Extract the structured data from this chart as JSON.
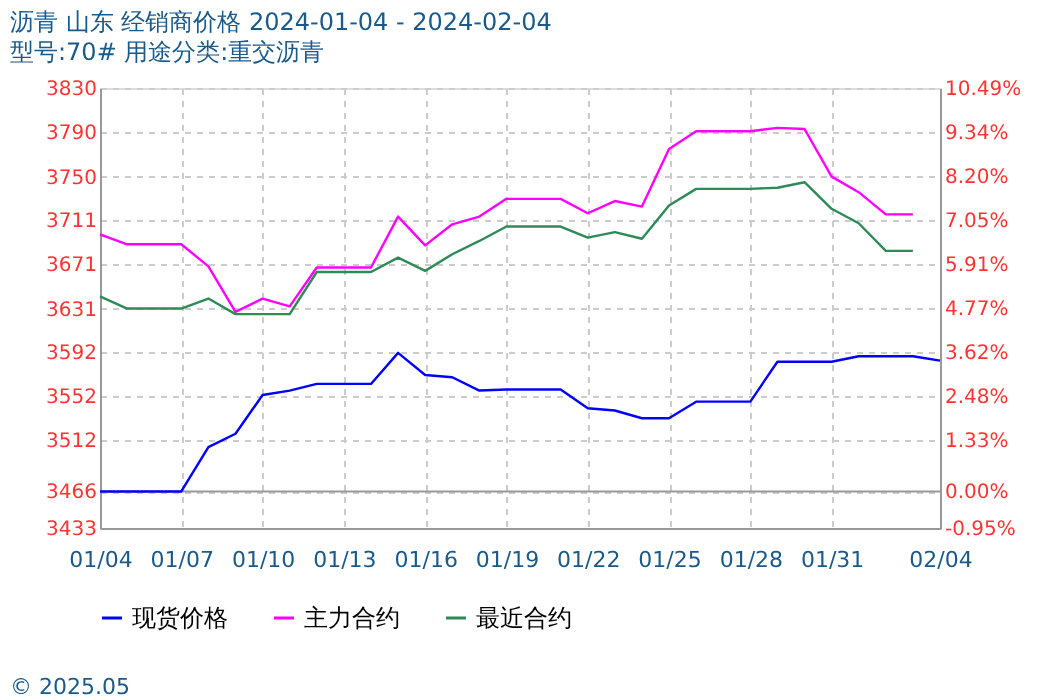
{
  "chart_data": {
    "type": "line",
    "title": "沥青 山东 经销商价格 2024-01-04 - 2024-02-04",
    "subtitle": "型号:70# 用途分类:重交沥青",
    "x": [
      "2024-01-04",
      "2024-01-05",
      "2024-01-06",
      "2024-01-07",
      "2024-01-08",
      "2024-01-09",
      "2024-01-10",
      "2024-01-11",
      "2024-01-12",
      "2024-01-13",
      "2024-01-14",
      "2024-01-15",
      "2024-01-16",
      "2024-01-17",
      "2024-01-18",
      "2024-01-19",
      "2024-01-20",
      "2024-01-21",
      "2024-01-22",
      "2024-01-23",
      "2024-01-24",
      "2024-01-25",
      "2024-01-26",
      "2024-01-27",
      "2024-01-28",
      "2024-01-29",
      "2024-01-30",
      "2024-01-31",
      "2024-02-01",
      "2024-02-02",
      "2024-02-03",
      "2024-02-04"
    ],
    "series": [
      {
        "name": "现货价格",
        "color": "#0000ff",
        "values": [
          3466,
          3466,
          3466,
          3466,
          3506,
          3518,
          3553,
          3557,
          3563,
          3563,
          3563,
          3591,
          3571,
          3569,
          3557,
          3558,
          3558,
          3558,
          3541,
          3539,
          3532,
          3532,
          3547,
          3547,
          3547,
          3583,
          3583,
          3583,
          3588,
          3588,
          3588,
          3584
        ]
      },
      {
        "name": "主力合约",
        "color": "#ff00ff",
        "values": [
          3698,
          3689,
          3689,
          3689,
          3669,
          3628,
          3640,
          3633,
          3668,
          3668,
          3668,
          3714,
          3688,
          3707,
          3714,
          3730,
          3730,
          3730,
          3717,
          3728,
          3723,
          3775,
          3791,
          3791,
          3791,
          3794,
          3793,
          3750,
          3736,
          3716,
          3716,
          null
        ]
      },
      {
        "name": "最近合约",
        "color": "#2e8b57",
        "values": [
          3642,
          3631,
          3631,
          3631,
          3640,
          3626,
          3626,
          3626,
          3664,
          3664,
          3664,
          3677,
          3665,
          3680,
          3692,
          3705,
          3705,
          3705,
          3695,
          3700,
          3694,
          3724,
          3739,
          3739,
          3739,
          3740,
          3745,
          3721,
          3708,
          3683,
          3683,
          null
        ]
      }
    ],
    "xlim": [
      "2024-01-04",
      "2024-02-04"
    ],
    "xticks": [
      {
        "value": "2024-01-04",
        "label": "01/04"
      },
      {
        "value": "2024-01-07",
        "label": "01/07"
      },
      {
        "value": "2024-01-10",
        "label": "01/10"
      },
      {
        "value": "2024-01-13",
        "label": "01/13"
      },
      {
        "value": "2024-01-16",
        "label": "01/16"
      },
      {
        "value": "2024-01-19",
        "label": "01/19"
      },
      {
        "value": "2024-01-22",
        "label": "01/22"
      },
      {
        "value": "2024-01-25",
        "label": "01/25"
      },
      {
        "value": "2024-01-28",
        "label": "01/28"
      },
      {
        "value": "2024-01-31",
        "label": "01/31"
      },
      {
        "value": "2024-02-04",
        "label": "02/04"
      }
    ],
    "ylim": [
      3433,
      3830
    ],
    "yticks": [
      3433,
      3466,
      3512,
      3552,
      3592,
      3631,
      3671,
      3711,
      3750,
      3790,
      3830
    ],
    "y2lim": [
      -0.95,
      10.49
    ],
    "y2ticks": [
      {
        "value": -0.95,
        "label": "-0.95%"
      },
      {
        "value": 0,
        "label": "0.00%"
      },
      {
        "value": 1.33,
        "label": "1.33%"
      },
      {
        "value": 2.48,
        "label": "2.48%"
      },
      {
        "value": 3.62,
        "label": "3.62%"
      },
      {
        "value": 4.77,
        "label": "4.77%"
      },
      {
        "value": 5.91,
        "label": "5.91%"
      },
      {
        "value": 7.05,
        "label": "7.05%"
      },
      {
        "value": 8.2,
        "label": "8.20%"
      },
      {
        "value": 9.34,
        "label": "9.34%"
      },
      {
        "value": 10.49,
        "label": "10.49%"
      }
    ],
    "ref_lines": [
      {
        "axis": "y",
        "value": 3466,
        "color": "#999999",
        "line_style": "solid"
      }
    ],
    "grid": true,
    "legend": "bottom",
    "marker": "none",
    "line_style": "solid",
    "annotations": [
      "© 2025.05"
    ]
  }
}
